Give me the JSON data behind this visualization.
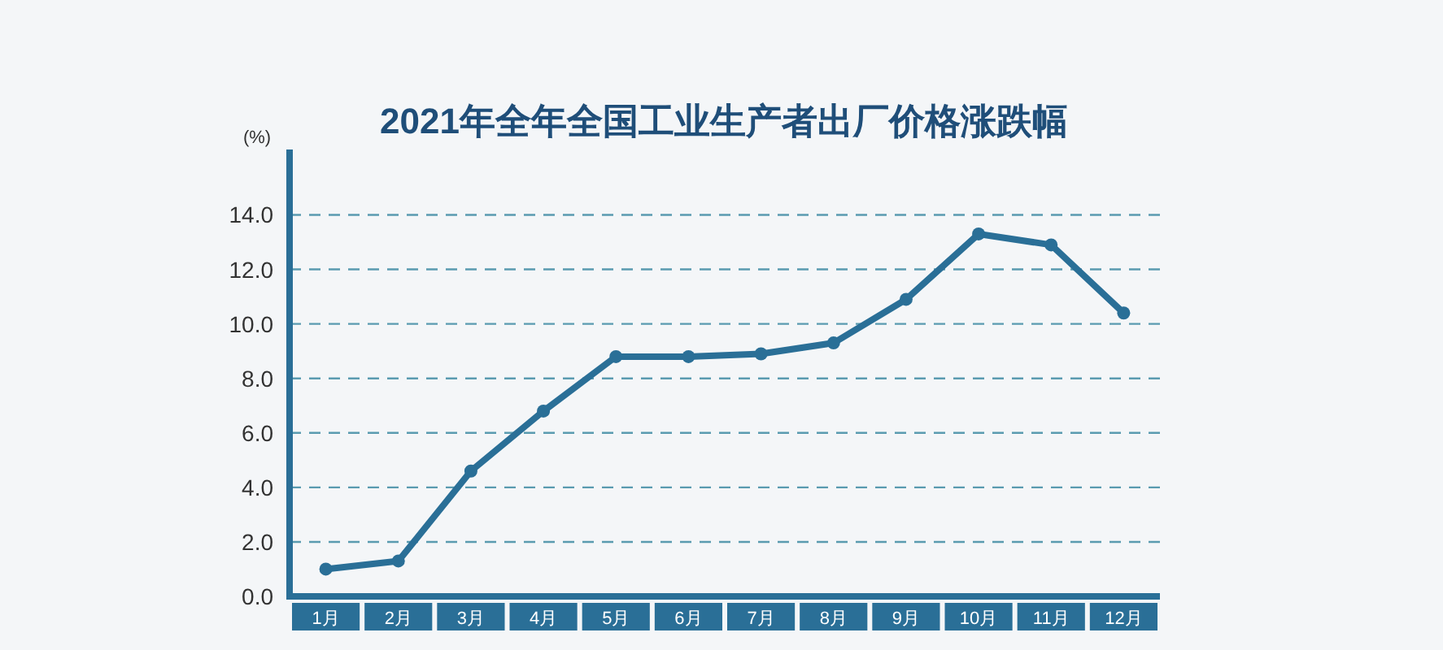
{
  "chart_data": {
    "type": "line",
    "title": "2021年全年全国工业生产者出厂价格涨跌幅",
    "ylabel": "(%)",
    "categories": [
      "1月",
      "2月",
      "3月",
      "4月",
      "5月",
      "6月",
      "7月",
      "8月",
      "9月",
      "10月",
      "11月",
      "12月"
    ],
    "series": [
      {
        "color": "#2a6f97",
        "values": [
          1.0,
          1.3,
          4.6,
          6.8,
          8.8,
          8.8,
          8.9,
          9.3,
          10.9,
          13.3,
          12.9,
          10.4
        ]
      }
    ],
    "ylim": [
      0,
      16.4
    ],
    "yticks": [
      {
        "value": 0,
        "label": "0.0"
      },
      {
        "value": 2,
        "label": "2.0"
      },
      {
        "value": 4,
        "label": "4.0"
      },
      {
        "value": 6,
        "label": "6.0"
      },
      {
        "value": 8,
        "label": "8.0"
      },
      {
        "value": 10,
        "label": "10.0"
      },
      {
        "value": 12,
        "label": "12.0"
      },
      {
        "value": 14,
        "label": "14.0"
      }
    ],
    "grid": "y",
    "marker": "circle"
  }
}
